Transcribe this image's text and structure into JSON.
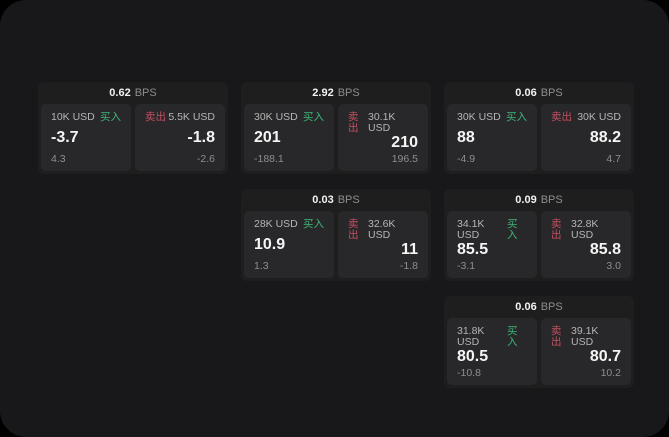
{
  "labels": {
    "bps_unit": "BPS",
    "buy": "买入",
    "sell": "卖出"
  },
  "colors": {
    "surface": "#18181a",
    "card": "#1e1e1f",
    "panel": "#28282a",
    "buy": "#3eb575",
    "sell": "#c44f60",
    "dimtext": "#8e8e8e"
  },
  "cards": [
    {
      "bps": "0.62",
      "buy": {
        "size": "10K USD",
        "price": "-3.7",
        "sub": "4.3"
      },
      "sell": {
        "size": "5.5K USD",
        "price": "-1.8",
        "sub": "-2.6"
      }
    },
    {
      "bps": "2.92",
      "buy": {
        "size": "30K USD",
        "price": "201",
        "sub": "-188.1"
      },
      "sell": {
        "size": "30.1K USD",
        "price": "210",
        "sub": "196.5"
      }
    },
    {
      "bps": "0.06",
      "buy": {
        "size": "30K USD",
        "price": "88",
        "sub": "-4.9"
      },
      "sell": {
        "size": "30K USD",
        "price": "88.2",
        "sub": "4.7"
      }
    },
    {
      "bps": "0.03",
      "buy": {
        "size": "28K USD",
        "price": "10.9",
        "sub": "1.3"
      },
      "sell": {
        "size": "32.6K USD",
        "price": "11",
        "sub": "-1.8"
      }
    },
    {
      "bps": "0.09",
      "buy": {
        "size": "34.1K USD",
        "price": "85.5",
        "sub": "-3.1"
      },
      "sell": {
        "size": "32.8K USD",
        "price": "85.8",
        "sub": "3.0"
      }
    },
    {
      "bps": "0.06",
      "buy": {
        "size": "31.8K USD",
        "price": "80.5",
        "sub": "-10.8"
      },
      "sell": {
        "size": "39.1K USD",
        "price": "80.7",
        "sub": "10.2"
      }
    }
  ]
}
